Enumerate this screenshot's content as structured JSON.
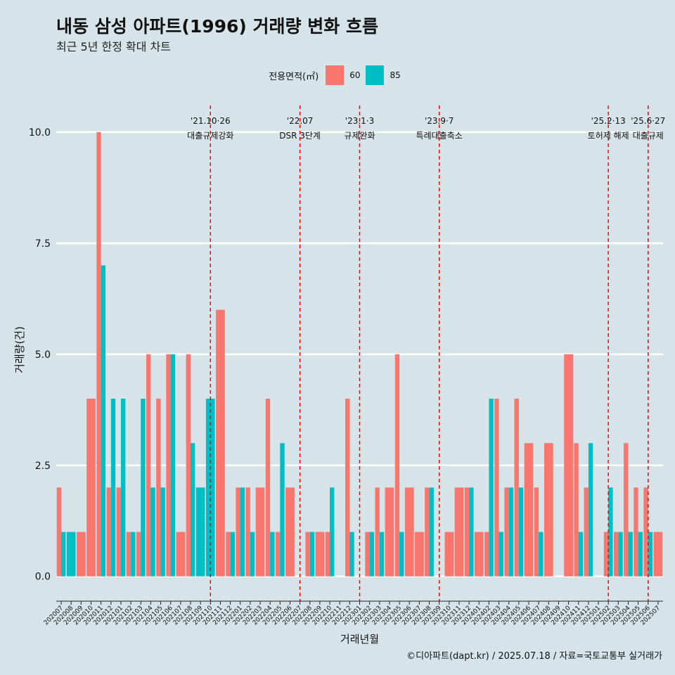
{
  "title": "내동 삼성 아파트(1996) 거래량 변화 흐름",
  "subtitle": "최근 5년 한정 확대 차트",
  "caption": "©디아파트(dapt.kr) / 2025.07.18 / 자료=국토교통부 실거래가",
  "legend": {
    "title": "전용면적(㎡)",
    "items": [
      {
        "label": "60",
        "color": "#f8766d"
      },
      {
        "label": "85",
        "color": "#00bfc4"
      }
    ]
  },
  "chart_data": {
    "type": "bar",
    "title": "내동 삼성 아파트(1996) 거래량 변화 흐름",
    "xlabel": "거래년월",
    "ylabel": "거래량(건)",
    "ylim": [
      -0.4,
      10.6
    ],
    "yticks": [
      0.0,
      2.5,
      5.0,
      7.5,
      10.0
    ],
    "ytick_labels": [
      "0.0",
      "2.5",
      "5.0",
      "7.5",
      "10.0"
    ],
    "categories": [
      "202007",
      "202008",
      "202009",
      "202010",
      "202011",
      "202012",
      "202101",
      "202102",
      "202103",
      "202104",
      "202105",
      "202106",
      "202107",
      "202108",
      "202109",
      "202110",
      "202111",
      "202112",
      "202201",
      "202202",
      "202203",
      "202204",
      "202205",
      "202206",
      "202207",
      "202208",
      "202209",
      "202210",
      "202211",
      "202212",
      "202301",
      "202302",
      "202303",
      "202304",
      "202305",
      "202306",
      "202307",
      "202308",
      "202309",
      "202310",
      "202311",
      "202312",
      "202401",
      "202402",
      "202403",
      "202404",
      "202405",
      "202406",
      "202407",
      "202408",
      "202409",
      "202410",
      "202411",
      "202412",
      "202501",
      "202502",
      "202503",
      "202504",
      "202505",
      "202506",
      "202507"
    ],
    "series": [
      {
        "name": "60",
        "color": "#f8766d",
        "values": [
          2,
          0,
          1,
          4,
          10,
          2,
          2,
          1,
          1,
          5,
          4,
          5,
          1,
          5,
          0,
          0,
          6,
          1,
          2,
          2,
          2,
          4,
          1,
          2,
          0,
          1,
          1,
          1,
          0,
          4,
          0,
          1,
          2,
          2,
          5,
          2,
          1,
          2,
          0,
          1,
          2,
          2,
          1,
          1,
          4,
          2,
          4,
          3,
          2,
          3,
          0,
          5,
          3,
          2,
          0,
          1,
          1,
          3,
          2,
          2,
          1
        ]
      },
      {
        "name": "85",
        "color": "#00bfc4",
        "values": [
          1,
          1,
          0,
          0,
          7,
          4,
          4,
          1,
          4,
          2,
          2,
          5,
          0,
          3,
          2,
          4,
          0,
          1,
          2,
          1,
          0,
          1,
          3,
          0,
          0,
          1,
          0,
          2,
          0,
          1,
          0,
          1,
          1,
          0,
          1,
          0,
          0,
          2,
          0,
          0,
          0,
          2,
          0,
          4,
          1,
          2,
          2,
          0,
          1,
          0,
          0,
          0,
          1,
          3,
          0,
          2,
          1,
          1,
          1,
          1,
          0
        ]
      }
    ],
    "events": [
      {
        "date": "'21.10·26",
        "label": "대출규제강화",
        "month": "202110"
      },
      {
        "date": "'22.07",
        "label": "DSR 3단계",
        "month": "202207"
      },
      {
        "date": "'23.1·3",
        "label": "규제완화",
        "month": "202301"
      },
      {
        "date": "'23.9·7",
        "label": "특례대출축소",
        "month": "202309"
      },
      {
        "date": "'25.2·13",
        "label": "토허제 해제",
        "month": "202502"
      },
      {
        "date": "'25.6·27",
        "label": "대출규제",
        "month": "202506"
      }
    ],
    "event_line_color": "#ff0000",
    "grid": true
  }
}
